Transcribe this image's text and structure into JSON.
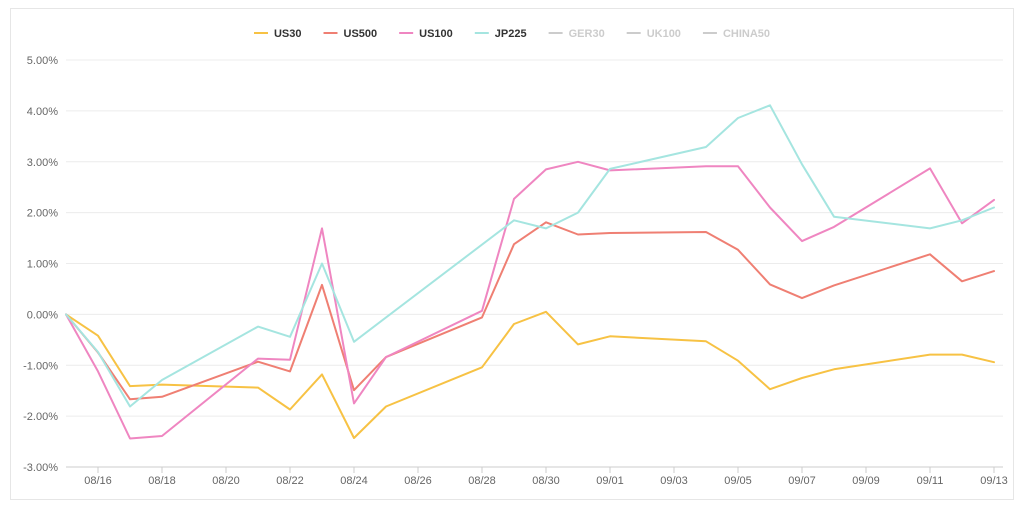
{
  "chart_data": {
    "type": "line",
    "title": "",
    "xlabel": "",
    "ylabel": "",
    "ylim": [
      -3,
      5
    ],
    "y_ticks": [
      "5.00%",
      "4.00%",
      "3.00%",
      "2.00%",
      "1.00%",
      "0.00%",
      "-1.00%",
      "-2.00%",
      "-3.00%"
    ],
    "x_ticks": [
      "08/16",
      "08/18",
      "08/20",
      "08/22",
      "08/24",
      "08/26",
      "08/28",
      "08/30",
      "09/01",
      "09/03",
      "09/05",
      "09/07",
      "09/09",
      "09/11",
      "09/13"
    ],
    "grid": "horizontal",
    "legend_position": "top-center",
    "series": [
      {
        "name": "US30",
        "color": "#f7c244",
        "visible": true,
        "x": [
          "08/15",
          "08/16",
          "08/17",
          "08/18",
          "08/21",
          "08/22",
          "08/23",
          "08/24",
          "08/25",
          "08/28",
          "08/29",
          "08/30",
          "08/31",
          "09/01",
          "09/04",
          "09/05",
          "09/06",
          "09/07",
          "09/08",
          "09/11",
          "09/12",
          "09/13"
        ],
        "values": [
          0.0,
          -0.42,
          -1.41,
          -1.38,
          -1.44,
          -1.87,
          -1.18,
          -2.43,
          -1.81,
          -1.04,
          -0.19,
          0.05,
          -0.59,
          -0.43,
          -0.53,
          -0.91,
          -1.47,
          -1.25,
          -1.08,
          -0.79,
          -0.79,
          -0.94
        ]
      },
      {
        "name": "US500",
        "color": "#ef7f73",
        "visible": true,
        "x": [
          "08/15",
          "08/16",
          "08/17",
          "08/18",
          "08/21",
          "08/22",
          "08/23",
          "08/24",
          "08/25",
          "08/28",
          "08/29",
          "08/30",
          "08/31",
          "09/01",
          "09/04",
          "09/05",
          "09/06",
          "09/07",
          "09/08",
          "09/11",
          "09/12",
          "09/13"
        ],
        "values": [
          0.0,
          -0.75,
          -1.67,
          -1.62,
          -0.93,
          -1.12,
          0.58,
          -1.49,
          -0.84,
          -0.06,
          1.38,
          1.81,
          1.57,
          1.6,
          1.62,
          1.27,
          0.59,
          0.32,
          0.57,
          1.18,
          0.65,
          0.85
        ]
      },
      {
        "name": "US100",
        "color": "#ef86c1",
        "visible": true,
        "x": [
          "08/15",
          "08/16",
          "08/17",
          "08/18",
          "08/21",
          "08/22",
          "08/23",
          "08/24",
          "08/25",
          "08/28",
          "08/29",
          "08/30",
          "08/31",
          "09/01",
          "09/04",
          "09/05",
          "09/06",
          "09/07",
          "09/08",
          "09/11",
          "09/12",
          "09/13"
        ],
        "values": [
          0.0,
          -1.12,
          -2.44,
          -2.39,
          -0.87,
          -0.89,
          1.69,
          -1.75,
          -0.84,
          0.07,
          2.27,
          2.85,
          3.0,
          2.83,
          2.91,
          2.91,
          2.1,
          1.44,
          1.72,
          2.87,
          1.79,
          2.25
        ]
      },
      {
        "name": "JP225",
        "color": "#a5e5e0",
        "visible": true,
        "x": [
          "08/15",
          "08/16",
          "08/17",
          "08/18",
          "08/21",
          "08/22",
          "08/23",
          "08/24",
          "08/29",
          "08/30",
          "08/31",
          "09/01",
          "09/04",
          "09/05",
          "09/06",
          "09/07",
          "09/08",
          "09/11",
          "09/12",
          "09/13"
        ],
        "values": [
          0.0,
          -0.74,
          -1.81,
          -1.29,
          -0.24,
          -0.44,
          1.0,
          -0.54,
          1.85,
          1.69,
          2.0,
          2.86,
          3.29,
          3.86,
          4.11,
          2.95,
          1.92,
          1.69,
          1.85,
          2.1
        ]
      },
      {
        "name": "GER30",
        "color": "#cccccc",
        "visible": false,
        "x": [
          "08/15",
          "08/16",
          "08/17"
        ],
        "values": [
          0.0,
          -0.8,
          -1.75
        ]
      },
      {
        "name": "UK100",
        "color": "#cccccc",
        "visible": false,
        "x": [
          "08/15",
          "08/16",
          "08/17"
        ],
        "values": [
          0.0,
          -0.78,
          -1.7
        ]
      },
      {
        "name": "CHINA50",
        "color": "#cccccc",
        "visible": false,
        "x": [
          "08/15",
          "08/16",
          "08/17"
        ],
        "values": [
          0.0,
          -0.76,
          -1.72
        ]
      }
    ]
  }
}
